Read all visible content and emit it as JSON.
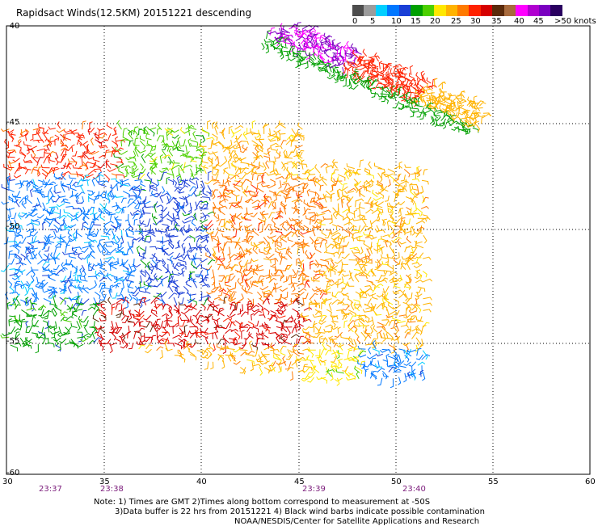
{
  "title": "Rapidsact Winds(12.5KM) 20151221 descending",
  "legend": {
    "colors": [
      "#4d4d4d",
      "#9c9c9c",
      "#00cfff",
      "#0077ff",
      "#1a3fd6",
      "#00a000",
      "#4cd000",
      "#ffe800",
      "#ffb300",
      "#ff7a00",
      "#ff2200",
      "#d60000",
      "#5a2a0a",
      "#a86a3c",
      "#ff00ff",
      "#b000d0",
      "#7a00c0",
      "#2a0060"
    ],
    "labels": [
      "0",
      "5",
      "10",
      "15",
      "20",
      "25",
      "30",
      "35",
      "40",
      "45",
      ">50 knots"
    ]
  },
  "axes": {
    "lon_ticks": [
      "30",
      "35",
      "40",
      "45",
      "50",
      "55",
      "60"
    ],
    "lat_ticks": [
      "-40",
      "-45",
      "-50",
      "-55",
      "-60"
    ]
  },
  "times": [
    "23:37",
    "23:38",
    "23:39",
    "23:40"
  ],
  "notes": {
    "line1": "Note: 1) Times are GMT 2)Times along bottom correspond to measurement at -50S",
    "line2": "3)Data buffer is 22 hrs from 20151221 4) Black wind barbs indicate possible contamination",
    "line3": "NOAA/NESDIS/Center for Satellite Applications and Research"
  }
}
